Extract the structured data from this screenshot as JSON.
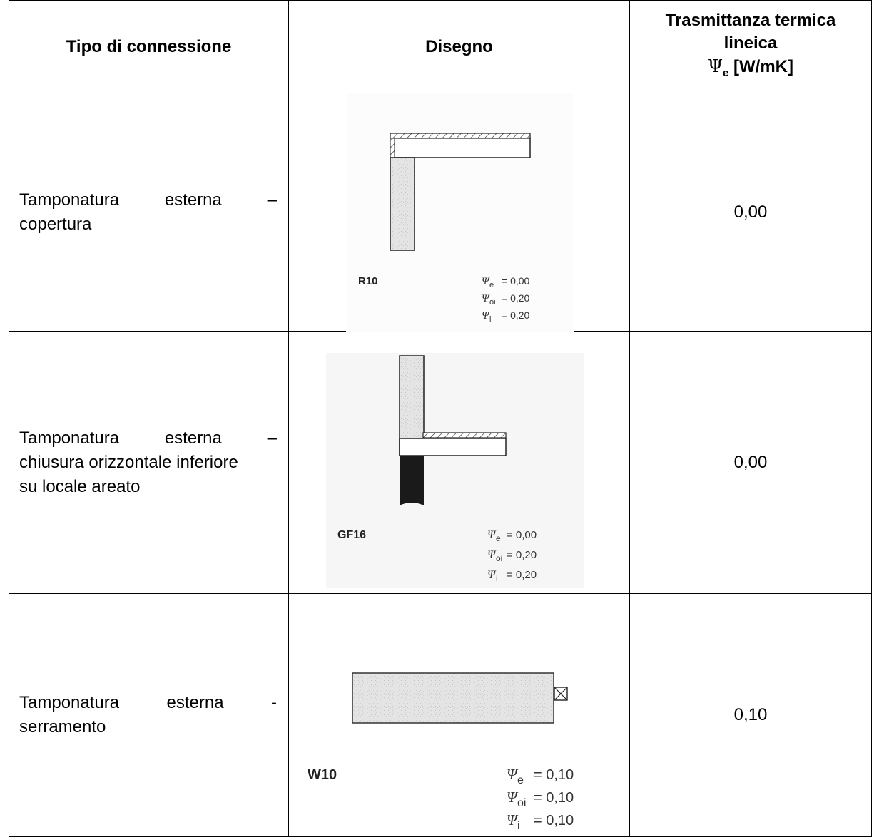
{
  "header": {
    "col1": "Tipo di connessione",
    "col2": "Disegno",
    "col3_line1": "Trasmittanza termica",
    "col3_line2": "lineica",
    "col3_psi": "Ψ",
    "col3_sub": "e",
    "col3_unit": "[W/mK]"
  },
  "rows": [
    {
      "type_w1": "Tamponatura",
      "type_w2": "esterna",
      "type_w3": "–",
      "type_rest": "copertura",
      "code": "R10",
      "psi_e": "= 0,00",
      "psi_oi": "= 0,20",
      "psi_i": "= 0,20",
      "value": "0,00"
    },
    {
      "type_w1": "Tamponatura",
      "type_w2": "esterna",
      "type_w3": "–",
      "type_rest1": "chiusura orizzontale inferiore",
      "type_rest2": "su locale areato",
      "code": "GF16",
      "psi_e": "= 0,00",
      "psi_oi": "= 0,20",
      "psi_i": "= 0,20",
      "value": "0,00"
    },
    {
      "type_w1": "Tamponatura",
      "type_w2": "esterna",
      "type_w3": "-",
      "type_rest": "serramento",
      "code": "W10",
      "psi_e": "= 0,10",
      "psi_oi": "= 0,10",
      "psi_i": "= 0,10",
      "value": "0,10"
    }
  ],
  "symbols": {
    "psi": "Ψ",
    "sub_e": "e",
    "sub_oi": "oi",
    "sub_i": "i"
  }
}
